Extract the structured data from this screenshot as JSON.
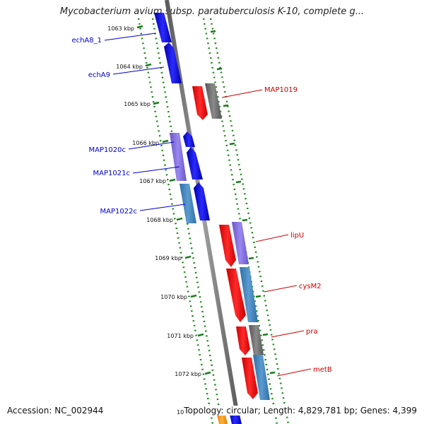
{
  "title": "Mycobacterium avium subsp. paratuberculosis K-10, complete g...",
  "footer": {
    "accession": "Accession: NC_002944",
    "topology": "Topology: circular; Length: 4,829,781 bp; Genes: 4,399"
  },
  "ticks": [
    "1063 kbp",
    "1064 kbp",
    "1065 kbp",
    "1066 kbp",
    "1067 kbp",
    "1068 kbp",
    "1069 kbp",
    "1070 kbp",
    "1071 kbp",
    "1072 kbp"
  ],
  "partial_tick": "10",
  "left_genes": [
    "echA8_1",
    "echA9",
    "MAP1020c",
    "MAP1021c",
    "MAP1022c"
  ],
  "right_genes": [
    "MAP1019",
    "lipU",
    "cysM2",
    "pra",
    "metB"
  ],
  "colors": {
    "left_label": "#0000cc",
    "right_label": "#cc0000",
    "forward_cds": "#ff0000",
    "reverse_cds": "#0000ff",
    "tick": "#1a7a1a",
    "backbone": "#808080"
  }
}
